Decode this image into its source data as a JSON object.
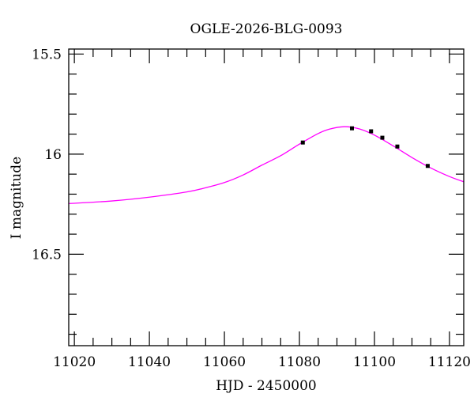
{
  "chart_data": {
    "type": "scatter",
    "title": "OGLE-2026-BLG-0093",
    "xlabel": "HJD - 2450000",
    "ylabel": "I magnitude",
    "xlim": [
      11018.5,
      11123.8
    ],
    "ylim": [
      15.475,
      16.957
    ],
    "y_inverted": true,
    "grid": false,
    "x_ticks": [
      11020,
      11040,
      11060,
      11080,
      11100,
      11120
    ],
    "x_tick_labels": [
      "11020",
      "11040",
      "11060",
      "11080",
      "11100",
      "11120"
    ],
    "x_minor_step": 5,
    "y_ticks": [
      15.5,
      16,
      16.5
    ],
    "y_tick_labels": [
      "15.5",
      "16",
      "16.5"
    ],
    "y_minor_step": 0.1,
    "series": [
      {
        "kind": "points",
        "color": "#000000",
        "x": [
          11080.9,
          11094.0,
          11099.1,
          11102.1,
          11106.1,
          11114.2
        ],
        "y": [
          15.942,
          15.871,
          15.886,
          15.918,
          15.962,
          16.059
        ],
        "yerr": [
          0.004,
          0.003,
          0.003,
          0.004,
          0.004,
          0.004
        ]
      },
      {
        "kind": "model-curve",
        "color": "#ff00ff",
        "x": [
          11018.5,
          11030,
          11040,
          11050,
          11055,
          11060,
          11065,
          11070,
          11075,
          11080,
          11085,
          11088,
          11092,
          11096,
          11100,
          11105,
          11110,
          11115,
          11120,
          11123.8
        ],
        "y": [
          16.247,
          16.234,
          16.215,
          16.189,
          16.168,
          16.142,
          16.104,
          16.055,
          16.008,
          15.95,
          15.897,
          15.875,
          15.863,
          15.874,
          15.905,
          15.959,
          16.017,
          16.069,
          16.112,
          16.138
        ]
      }
    ]
  }
}
